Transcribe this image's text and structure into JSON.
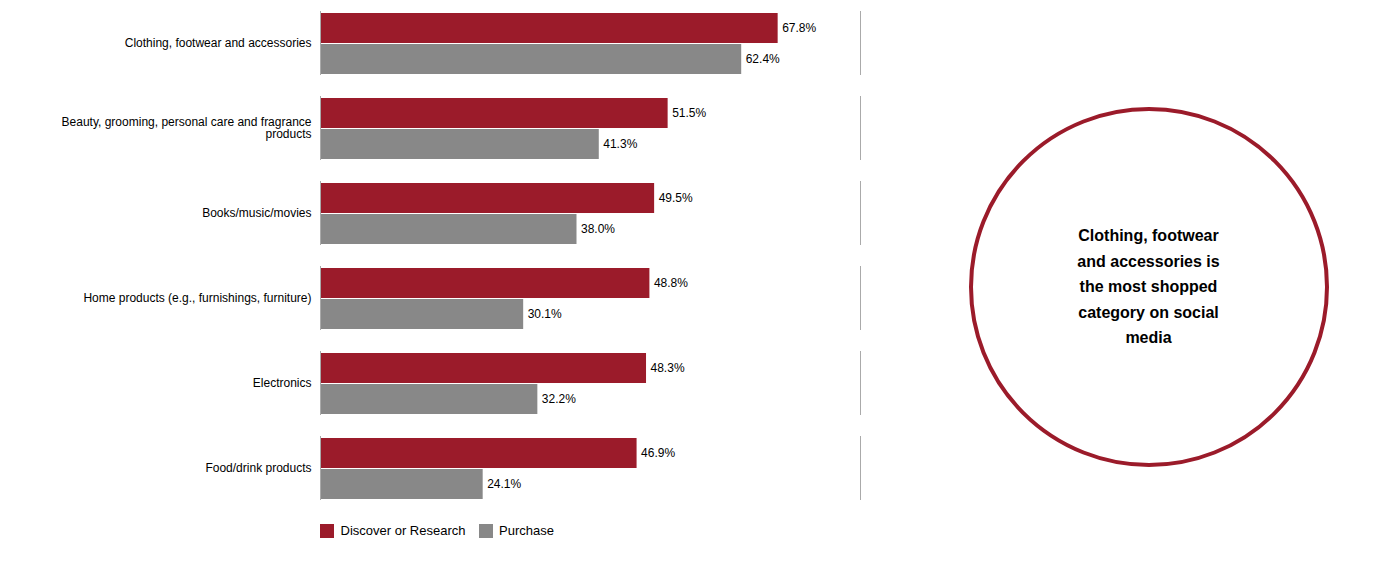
{
  "chart_data": {
    "type": "bar",
    "orientation": "horizontal",
    "categories": [
      "Food/drink products",
      "Electronics",
      "Home products (e.g., furnishings, furniture)",
      "Books/music/movies",
      "Beauty, grooming, personal care and fragrance\nproducts",
      "Clothing, footwear and accessories"
    ],
    "series": [
      {
        "name": "Discover or Research",
        "color": "#9B1B2A",
        "values": [
          46.9,
          48.3,
          48.8,
          49.5,
          51.5,
          67.8
        ],
        "value_labels": [
          "46.9%",
          "48.3%",
          "48.8%",
          "49.5%",
          "51.5%",
          "67.8%"
        ]
      },
      {
        "name": "Purchase",
        "color": "#888888",
        "values": [
          24.1,
          32.2,
          30.1,
          38.0,
          41.3,
          62.4
        ],
        "value_labels": [
          "24.1%",
          "32.2%",
          "30.1%",
          "38.0%",
          "41.3%",
          "62.4%"
        ]
      }
    ],
    "xlim": [
      0,
      80
    ],
    "tick_labels": "y",
    "data_labels": true,
    "grid": false,
    "legend": "bottom",
    "annotation": {
      "text": "Clothing, footwear\nand accessories is\nthe most shopped\ncategory on social\nmedia",
      "color": "#9B1B2A"
    }
  }
}
